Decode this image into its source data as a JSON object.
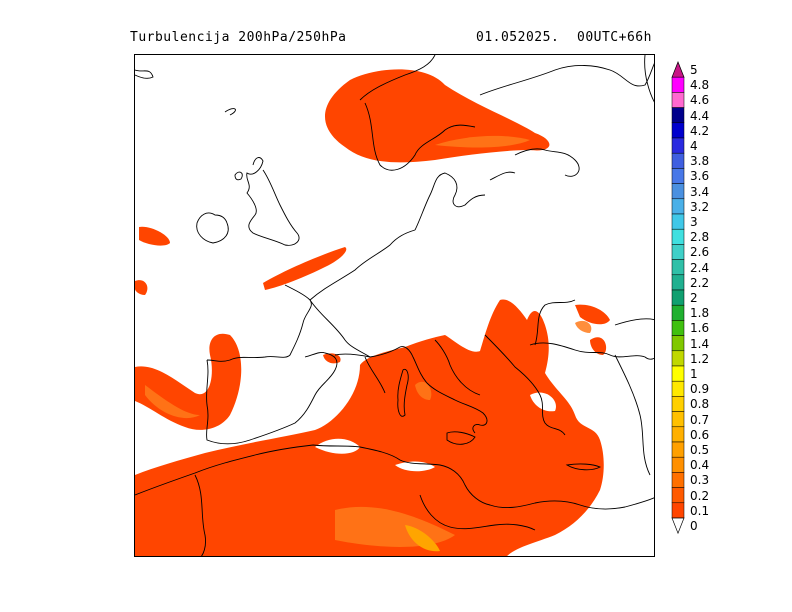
{
  "header": {
    "title": "Turbulencija 200hPa/250hPa",
    "date": "01.052025.",
    "run": "00UTC+66h"
  },
  "colors": {
    "field": "#ff4500",
    "field_light": "#ff7a1a",
    "field_peak": "#ffa500",
    "coast": "#000000"
  },
  "legend": {
    "labels": [
      "5",
      "4.8",
      "4.6",
      "4.4",
      "4.2",
      "4",
      "3.8",
      "3.6",
      "3.4",
      "3.2",
      "3",
      "2.8",
      "2.6",
      "2.4",
      "2.2",
      "2",
      "1.8",
      "1.6",
      "1.4",
      "1.2",
      "1",
      "0.9",
      "0.8",
      "0.7",
      "0.6",
      "0.5",
      "0.4",
      "0.3",
      "0.2",
      "0.1",
      "0"
    ],
    "colors": [
      "#c71585",
      "#ff00ff",
      "#ff69d0",
      "#00008b",
      "#0000cd",
      "#2a2ae0",
      "#3f5fe0",
      "#4878e8",
      "#4a90e0",
      "#4ab0e8",
      "#40c8e8",
      "#40e0e0",
      "#40d0c8",
      "#30c0a8",
      "#20b090",
      "#10a070",
      "#20b030",
      "#40c010",
      "#80c800",
      "#c0d800",
      "#ffff00",
      "#ffe800",
      "#ffd000",
      "#ffc000",
      "#ffb000",
      "#ffa000",
      "#ff9000",
      "#ff7000",
      "#ff5a00",
      "#ff4500",
      "#ffffff"
    ]
  }
}
